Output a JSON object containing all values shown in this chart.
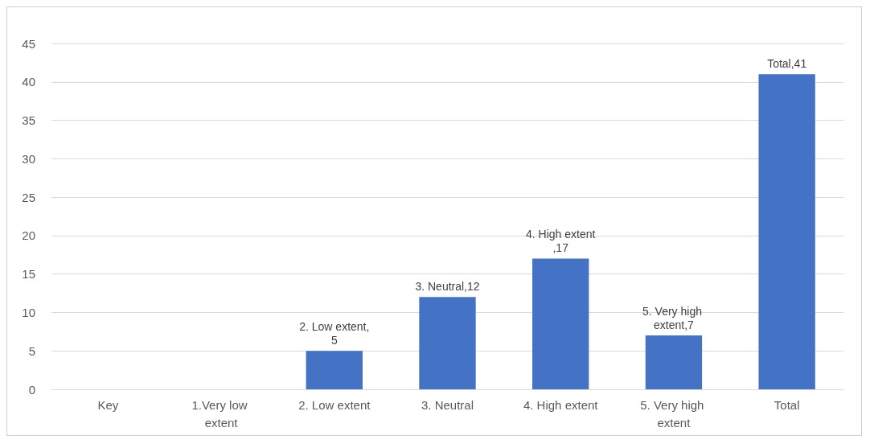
{
  "chart_data": {
    "type": "bar",
    "categories": [
      "Key",
      "1.Very low extent",
      "2. Low extent",
      "3. Neutral",
      "4. High extent",
      "5. Very high extent",
      "Total"
    ],
    "values": [
      null,
      null,
      5,
      12,
      17,
      7,
      41
    ],
    "value_labels": [
      null,
      null,
      "2. Low extent,5",
      "3. Neutral,12",
      "4. High extent,17",
      "5. Very high extent,7",
      "Total,41"
    ],
    "color": "#4472c4",
    "ylim": [
      0,
      45
    ],
    "yticks": [
      0,
      5,
      10,
      15,
      20,
      25,
      30,
      35,
      40,
      45
    ],
    "grid": "y"
  }
}
